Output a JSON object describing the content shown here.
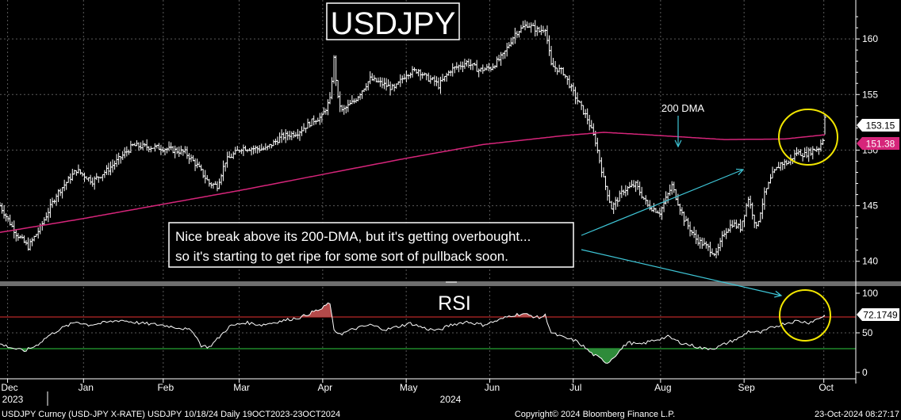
{
  "chart_data": {
    "type": "ohlc_bar_with_indicator",
    "title": "USDJPY",
    "price_axis": {
      "ticks": [
        140,
        145,
        150,
        155,
        160
      ],
      "ylim": [
        138.2,
        163.5
      ]
    },
    "rsi_axis": {
      "ticks": [
        0,
        50,
        100
      ],
      "ylim": [
        -8,
        108
      ],
      "upper_band": 70,
      "lower_band": 30
    },
    "x_months": [
      {
        "label": "Dec",
        "sublabel": "2023"
      },
      {
        "label": "Jan",
        "sublabel": "2024"
      },
      {
        "label": "Feb",
        "sublabel": ""
      },
      {
        "label": "Mar",
        "sublabel": ""
      },
      {
        "label": "Apr",
        "sublabel": ""
      },
      {
        "label": "May",
        "sublabel": ""
      },
      {
        "label": "Jun",
        "sublabel": ""
      },
      {
        "label": "Jul",
        "sublabel": ""
      },
      {
        "label": "Aug",
        "sublabel": ""
      },
      {
        "label": "Sep",
        "sublabel": ""
      },
      {
        "label": "Oct",
        "sublabel": ""
      }
    ],
    "year_labels": [
      "2023",
      "2024"
    ],
    "price_anchors": [
      [
        0,
        145.0
      ],
      [
        8,
        142.5
      ],
      [
        14,
        141.3
      ],
      [
        20,
        143.0
      ],
      [
        28,
        146.0
      ],
      [
        38,
        148.2
      ],
      [
        46,
        147.2
      ],
      [
        54,
        148.3
      ],
      [
        66,
        150.4
      ],
      [
        80,
        150.2
      ],
      [
        92,
        149.8
      ],
      [
        98,
        148.6
      ],
      [
        104,
        147.0
      ],
      [
        108,
        146.8
      ],
      [
        112,
        149.0
      ],
      [
        120,
        150.2
      ],
      [
        132,
        150.1
      ],
      [
        140,
        151.2
      ],
      [
        148,
        151.6
      ],
      [
        156,
        152.7
      ],
      [
        160,
        153.0
      ],
      [
        164,
        154.5
      ],
      [
        166,
        158.2
      ],
      [
        168,
        154.6
      ],
      [
        170,
        153.5
      ],
      [
        176,
        154.4
      ],
      [
        184,
        156.4
      ],
      [
        196,
        155.5
      ],
      [
        202,
        156.9
      ],
      [
        208,
        157.2
      ],
      [
        212,
        156.5
      ],
      [
        216,
        156.2
      ],
      [
        218,
        155.8
      ],
      [
        224,
        157.2
      ],
      [
        232,
        157.9
      ],
      [
        238,
        157.2
      ],
      [
        244,
        157.4
      ],
      [
        250,
        158.5
      ],
      [
        256,
        160.5
      ],
      [
        262,
        161.3
      ],
      [
        268,
        160.7
      ],
      [
        271,
        161.0
      ],
      [
        274,
        157.6
      ],
      [
        280,
        157.0
      ],
      [
        286,
        154.8
      ],
      [
        292,
        152.8
      ],
      [
        296,
        150.8
      ],
      [
        300,
        147.4
      ],
      [
        304,
        144.8
      ],
      [
        310,
        146.4
      ],
      [
        316,
        146.9
      ],
      [
        322,
        145.0
      ],
      [
        328,
        144.4
      ],
      [
        334,
        146.8
      ],
      [
        340,
        143.8
      ],
      [
        346,
        142.0
      ],
      [
        352,
        141.2
      ],
      [
        356,
        140.6
      ],
      [
        360,
        142.6
      ],
      [
        364,
        143.4
      ],
      [
        368,
        143.0
      ],
      [
        372,
        145.7
      ],
      [
        376,
        143.0
      ],
      [
        380,
        146.0
      ],
      [
        384,
        147.8
      ],
      [
        388,
        148.8
      ],
      [
        392,
        148.9
      ],
      [
        396,
        149.8
      ],
      [
        400,
        149.6
      ],
      [
        404,
        150.0
      ],
      [
        407,
        150.2
      ],
      [
        409,
        151.0
      ],
      [
        410,
        153.15
      ]
    ],
    "dma200_anchors": [
      [
        0,
        142.6
      ],
      [
        40,
        143.8
      ],
      [
        80,
        145.1
      ],
      [
        120,
        146.4
      ],
      [
        160,
        147.8
      ],
      [
        200,
        149.2
      ],
      [
        240,
        150.5
      ],
      [
        280,
        151.3
      ],
      [
        300,
        151.6
      ],
      [
        320,
        151.4
      ],
      [
        360,
        150.95
      ],
      [
        390,
        151.0
      ],
      [
        410,
        151.38
      ]
    ],
    "rsi_anchors": [
      [
        0,
        36
      ],
      [
        6,
        31
      ],
      [
        12,
        27
      ],
      [
        18,
        34
      ],
      [
        24,
        46
      ],
      [
        30,
        55
      ],
      [
        38,
        64
      ],
      [
        44,
        60
      ],
      [
        50,
        62
      ],
      [
        60,
        66
      ],
      [
        70,
        62
      ],
      [
        80,
        60
      ],
      [
        90,
        56
      ],
      [
        96,
        52
      ],
      [
        100,
        34
      ],
      [
        104,
        32
      ],
      [
        108,
        42
      ],
      [
        114,
        58
      ],
      [
        122,
        63
      ],
      [
        130,
        60
      ],
      [
        140,
        65
      ],
      [
        150,
        70
      ],
      [
        156,
        77
      ],
      [
        160,
        80
      ],
      [
        162,
        85
      ],
      [
        164,
        88
      ],
      [
        166,
        52
      ],
      [
        170,
        49
      ],
      [
        176,
        55
      ],
      [
        184,
        60
      ],
      [
        192,
        54
      ],
      [
        198,
        58
      ],
      [
        204,
        62
      ],
      [
        212,
        55
      ],
      [
        218,
        53
      ],
      [
        224,
        60
      ],
      [
        232,
        64
      ],
      [
        240,
        60
      ],
      [
        248,
        66
      ],
      [
        254,
        72
      ],
      [
        260,
        74
      ],
      [
        268,
        69
      ],
      [
        271,
        72
      ],
      [
        274,
        50
      ],
      [
        280,
        44
      ],
      [
        286,
        40
      ],
      [
        290,
        33
      ],
      [
        294,
        24
      ],
      [
        298,
        18
      ],
      [
        302,
        12
      ],
      [
        306,
        22
      ],
      [
        312,
        38
      ],
      [
        318,
        35
      ],
      [
        324,
        40
      ],
      [
        332,
        45
      ],
      [
        338,
        38
      ],
      [
        344,
        34
      ],
      [
        350,
        30
      ],
      [
        356,
        31
      ],
      [
        362,
        38
      ],
      [
        368,
        44
      ],
      [
        372,
        52
      ],
      [
        378,
        50
      ],
      [
        384,
        57
      ],
      [
        390,
        62
      ],
      [
        396,
        65
      ],
      [
        402,
        63
      ],
      [
        406,
        67
      ],
      [
        410,
        72.17
      ]
    ],
    "last_price": "153.15",
    "dma_value": "151.38",
    "rsi_value": "72.1749",
    "panel_label": "RSI",
    "dma_label": "200 DMA",
    "annotation": [
      "Nice break above its 200-DMA, but it's getting overbought...",
      "so it's starting to get ripe for some sort of pullback soon."
    ],
    "colors": {
      "background": "#000000",
      "bars": "#ffffff",
      "dma": "#d6257a",
      "rsi_line": "#ffffff",
      "upper_band": "#e63232",
      "lower_band": "#2ecc40",
      "overbought_fill": "#b34a4a",
      "oversold_fill": "#2e8b3a",
      "arrows": "#3ec5d6",
      "circles": "#f2e600",
      "grid": "#5a5a5a",
      "badge_last": "#ffffff",
      "badge_dma": "#d6257a"
    }
  },
  "footer": {
    "left": "USDJPY Curncy (USD-JPY X-RATE) USDJPY  10/18/24  Daily 19OCT2023-23OCT2024",
    "center": "Copyright© 2024 Bloomberg Finance L.P.",
    "right": "23-Oct-2024 08:27:17"
  }
}
